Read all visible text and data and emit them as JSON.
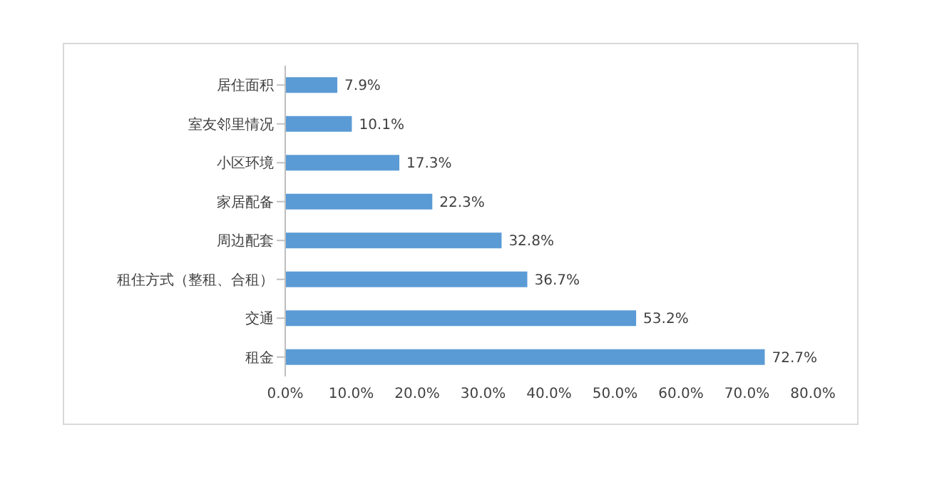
{
  "chart_data": {
    "type": "bar",
    "orientation": "horizontal",
    "categories": [
      "居住面积",
      "室友邻里情况",
      "小区环境",
      "家居配备",
      "周边配套",
      "租住方式（整租、合租）",
      "交通",
      "租金"
    ],
    "values": [
      7.9,
      10.1,
      17.3,
      22.3,
      32.8,
      36.7,
      53.2,
      72.7
    ],
    "value_labels": [
      "7.9%",
      "10.1%",
      "17.3%",
      "22.3%",
      "32.8%",
      "36.7%",
      "53.2%",
      "72.7%"
    ],
    "color": "#5b9bd5",
    "xlim": [
      0,
      80
    ],
    "xticks": [
      {
        "value": 0,
        "label": "0.0%"
      },
      {
        "value": 10,
        "label": "10.0%"
      },
      {
        "value": 20,
        "label": "20.0%"
      },
      {
        "value": 30,
        "label": "30.0%"
      },
      {
        "value": 40,
        "label": "40.0%"
      },
      {
        "value": 50,
        "label": "50.0%"
      },
      {
        "value": 60,
        "label": "60.0%"
      },
      {
        "value": 70,
        "label": "70.0%"
      },
      {
        "value": 80,
        "label": "80.0%"
      }
    ],
    "grid": false
  }
}
